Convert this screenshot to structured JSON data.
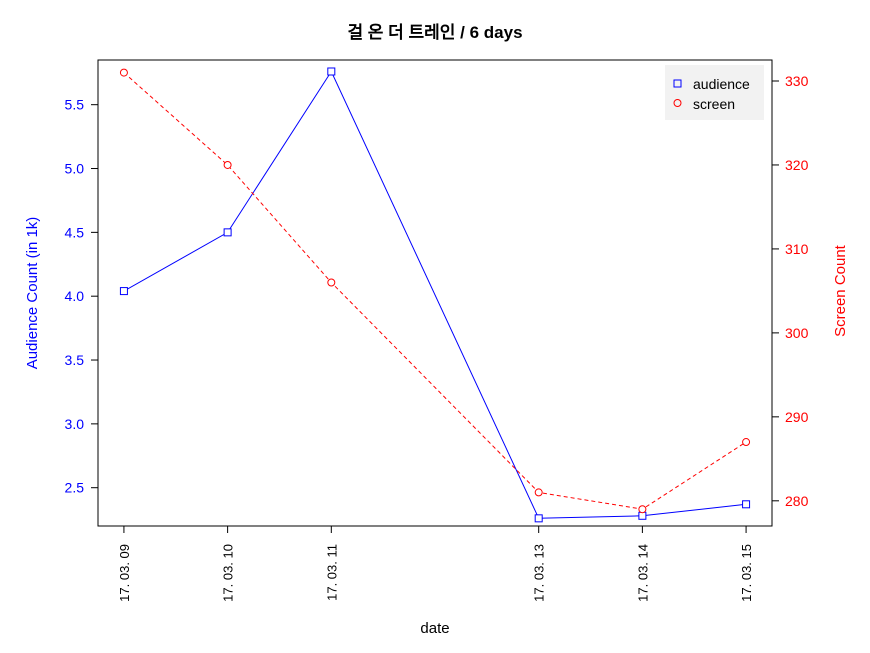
{
  "chart_data": {
    "type": "line",
    "title": "걸 온 더 트레인 / 6 days",
    "xlabel": "date",
    "categories": [
      "17. 03. 09",
      "17. 03. 10",
      "17. 03. 11",
      "17. 03. 13",
      "17. 03. 14",
      "17. 03. 15"
    ],
    "x_day_positions": [
      0,
      1,
      2,
      4,
      5,
      6
    ],
    "y_left": {
      "label": "Audience Count (in 1k)",
      "ticks": [
        "2.5",
        "3.0",
        "3.5",
        "4.0",
        "4.5",
        "5.0",
        "5.5"
      ],
      "range": [
        2.2,
        5.85
      ],
      "color": "#0000ff"
    },
    "y_right": {
      "label": "Screen Count",
      "ticks": [
        "280",
        "290",
        "300",
        "310",
        "320",
        "330"
      ],
      "range": [
        277,
        332.5
      ],
      "color": "#ff0000"
    },
    "series": [
      {
        "name": "audience",
        "axis": "left",
        "color": "#0000ff",
        "marker": "square",
        "line_style": "solid",
        "values": [
          4.04,
          4.5,
          5.76,
          2.26,
          2.28,
          2.37
        ]
      },
      {
        "name": "screen",
        "axis": "right",
        "color": "#ff0000",
        "marker": "circle",
        "line_style": "dashed",
        "values": [
          331,
          320,
          306,
          281,
          279,
          287
        ]
      }
    ],
    "legend": {
      "position": "top-right",
      "background": "#f2f2f2"
    },
    "grid": false
  }
}
